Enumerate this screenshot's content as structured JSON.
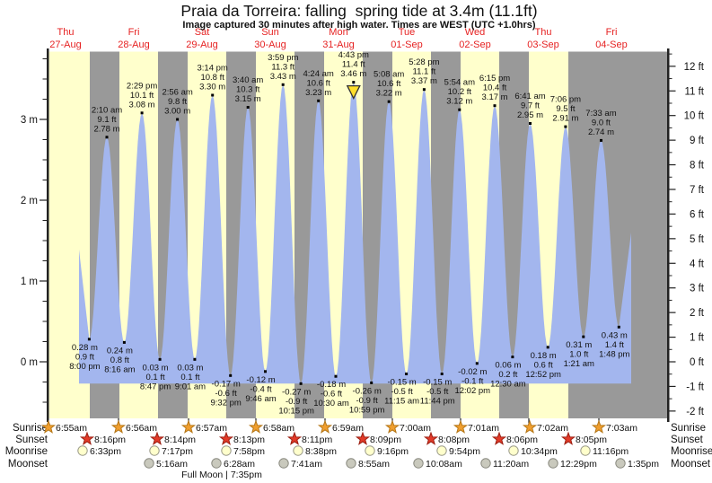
{
  "title": "Praia da Torreira: falling  spring tide at 3.4m (11.1ft)",
  "subtitle": "Image captured 30 minutes after high water. Times are WEST (UTC +1.0hrs)",
  "days": [
    {
      "name": "Thu",
      "date": "27-Aug"
    },
    {
      "name": "Fri",
      "date": "28-Aug"
    },
    {
      "name": "Sat",
      "date": "29-Aug"
    },
    {
      "name": "Sun",
      "date": "30-Aug"
    },
    {
      "name": "Mon",
      "date": "31-Aug"
    },
    {
      "name": "Tue",
      "date": "01-Sep"
    },
    {
      "name": "Wed",
      "date": "02-Sep"
    },
    {
      "name": "Thu",
      "date": "03-Sep"
    },
    {
      "name": "Fri",
      "date": "04-Sep"
    }
  ],
  "chart_data": {
    "type": "area",
    "title": "Praia da Torreira tide curve",
    "time_origin": "hours since 27-Aug 00:00 WEST",
    "baseline_m": -0.27,
    "curve_start": {
      "t": 16.4,
      "h": 1.39
    },
    "curve_end": {
      "t": 210.1,
      "h": 1.6
    },
    "tides": [
      {
        "type": "low",
        "t": 20.0,
        "h": 0.28,
        "m": "0.28 m",
        "ft": "0.9 ft",
        "time": "8:00 pm"
      },
      {
        "type": "high",
        "t": 26.17,
        "h": 2.78,
        "m": "2.78 m",
        "ft": "9.1 ft",
        "time": "2:10 am"
      },
      {
        "type": "low",
        "t": 32.27,
        "h": 0.24,
        "m": "0.24 m",
        "ft": "0.8 ft",
        "time": "8:16 am"
      },
      {
        "type": "high",
        "t": 38.48,
        "h": 3.08,
        "m": "3.08 m",
        "ft": "10.1 ft",
        "time": "2:29 pm"
      },
      {
        "type": "low",
        "t": 44.78,
        "h": 0.03,
        "m": "0.03 m",
        "ft": "0.1 ft",
        "time": "8:47 pm"
      },
      {
        "type": "high",
        "t": 50.93,
        "h": 3.0,
        "m": "3.00 m",
        "ft": "9.8 ft",
        "time": "2:56 am"
      },
      {
        "type": "low",
        "t": 57.02,
        "h": 0.03,
        "m": "0.03 m",
        "ft": "0.1 ft",
        "time": "9:01 am"
      },
      {
        "type": "high",
        "t": 63.23,
        "h": 3.3,
        "m": "3.30 m",
        "ft": "10.8 ft",
        "time": "3:14 pm"
      },
      {
        "type": "low",
        "t": 69.53,
        "h": -0.17,
        "m": "-0.17 m",
        "ft": "-0.6 ft",
        "time": "9:32 pm"
      },
      {
        "type": "high",
        "t": 75.67,
        "h": 3.15,
        "m": "3.15 m",
        "ft": "10.3 ft",
        "time": "3:40 am"
      },
      {
        "type": "low",
        "t": 81.77,
        "h": -0.12,
        "m": "-0.12 m",
        "ft": "-0.4 ft",
        "time": "9:46 am"
      },
      {
        "type": "high",
        "t": 87.98,
        "h": 3.43,
        "m": "3.43 m",
        "ft": "11.3 ft",
        "time": "3:59 pm"
      },
      {
        "type": "low",
        "t": 94.25,
        "h": -0.27,
        "m": "-0.27 m",
        "ft": "-0.9 ft",
        "time": "10:15 pm"
      },
      {
        "type": "high",
        "t": 100.4,
        "h": 3.23,
        "m": "3.23 m",
        "ft": "10.6 ft",
        "time": "4:24 am"
      },
      {
        "type": "low",
        "t": 106.5,
        "h": -0.18,
        "m": "-0.18 m",
        "ft": "-0.6 ft",
        "time": "10:30 am"
      },
      {
        "type": "high",
        "t": 112.72,
        "h": 3.46,
        "m": "3.46 m",
        "ft": "11.4 ft",
        "time": "4:43 pm",
        "current": true
      },
      {
        "type": "low",
        "t": 118.98,
        "h": -0.26,
        "m": "-0.26 m",
        "ft": "-0.9 ft",
        "time": "10:59 pm"
      },
      {
        "type": "high",
        "t": 125.13,
        "h": 3.22,
        "m": "3.22 m",
        "ft": "10.6 ft",
        "time": "5:08 am"
      },
      {
        "type": "low",
        "t": 131.25,
        "h": -0.15,
        "m": "-0.15 m",
        "ft": "-0.5 ft",
        "time": "11:15 am"
      },
      {
        "type": "high",
        "t": 137.47,
        "h": 3.37,
        "m": "3.37 m",
        "ft": "11.1 ft",
        "time": "5:28 pm"
      },
      {
        "type": "low",
        "t": 143.73,
        "h": -0.15,
        "m": "-0.15 m",
        "ft": "-0.5 ft",
        "time": "11:44 pm"
      },
      {
        "type": "high",
        "t": 149.9,
        "h": 3.12,
        "m": "3.12 m",
        "ft": "10.2 ft",
        "time": "5:54 am"
      },
      {
        "type": "low",
        "t": 156.03,
        "h": -0.02,
        "m": "-0.02 m",
        "ft": "-0.1 ft",
        "time": "12:02 pm"
      },
      {
        "type": "high",
        "t": 162.25,
        "h": 3.17,
        "m": "3.17 m",
        "ft": "10.4 ft",
        "time": "6:15 pm"
      },
      {
        "type": "low",
        "t": 168.5,
        "h": 0.06,
        "m": "0.06 m",
        "ft": "0.2 ft",
        "time": "12:30 am"
      },
      {
        "type": "high",
        "t": 174.68,
        "h": 2.95,
        "m": "2.95 m",
        "ft": "9.7 ft",
        "time": "6:41 am"
      },
      {
        "type": "low",
        "t": 180.87,
        "h": 0.18,
        "m": "0.18 m",
        "ft": "0.6 ft",
        "time": "12:52 pm"
      },
      {
        "type": "high",
        "t": 187.1,
        "h": 2.91,
        "m": "2.91 m",
        "ft": "9.5 ft",
        "time": "7:06 pm"
      },
      {
        "type": "low",
        "t": 193.35,
        "h": 0.31,
        "m": "0.31 m",
        "ft": "1.0 ft",
        "time": "1:21 am"
      },
      {
        "type": "high",
        "t": 199.55,
        "h": 2.74,
        "m": "2.74 m",
        "ft": "9.0 ft",
        "time": "7:33 am"
      },
      {
        "type": "low",
        "t": 205.8,
        "h": 0.43,
        "m": "0.43 m",
        "ft": "1.4 ft",
        "time": "1:48 pm"
      }
    ],
    "current_marker": {
      "time": "4:43 pm",
      "tide_m": 3.46,
      "symbol": "triangle-down"
    },
    "left_axis": {
      "unit": "m",
      "minor_step": 0.25,
      "labels": [
        {
          "v": 0,
          "text": "0 m"
        },
        {
          "v": 1,
          "text": "1 m"
        },
        {
          "v": 2,
          "text": "2 m"
        },
        {
          "v": 3,
          "text": "3 m"
        }
      ]
    },
    "right_axis": {
      "unit": "ft",
      "minor_step": 0.5,
      "labels": [
        {
          "v": 12,
          "text": "12 ft"
        },
        {
          "v": 11,
          "text": "11 ft"
        },
        {
          "v": 10,
          "text": "10 ft"
        },
        {
          "v": 9,
          "text": "9 ft"
        },
        {
          "v": 8,
          "text": "8 ft"
        },
        {
          "v": 7,
          "text": "7 ft"
        },
        {
          "v": 6,
          "text": "6 ft"
        },
        {
          "v": 5,
          "text": "5 ft"
        },
        {
          "v": 4,
          "text": "4 ft"
        },
        {
          "v": 3,
          "text": "3 ft"
        },
        {
          "v": 2,
          "text": "2 ft"
        },
        {
          "v": 1,
          "text": "1 ft"
        },
        {
          "v": 0,
          "text": "0 ft"
        },
        {
          "v": -1,
          "text": "-1 ft"
        },
        {
          "v": -2,
          "text": "-2 ft"
        }
      ]
    }
  },
  "astro": {
    "rows": [
      {
        "label": "Sunrise",
        "icon": "sunrise-star",
        "times": [
          "6:55am",
          "6:56am",
          "6:57am",
          "6:58am",
          "6:59am",
          "7:00am",
          "7:01am",
          "7:02am",
          "7:03am"
        ]
      },
      {
        "label": "Sunset",
        "icon": "sunset-star",
        "times": [
          "8:16pm",
          "8:14pm",
          "8:13pm",
          "8:11pm",
          "8:09pm",
          "8:08pm",
          "8:06pm",
          "8:05pm"
        ]
      },
      {
        "label": "Moonrise",
        "icon": "moonrise-circle",
        "times": [
          "6:33pm",
          "7:17pm",
          "7:58pm",
          "8:38pm",
          "9:16pm",
          "9:54pm",
          "10:34pm",
          "11:16pm"
        ]
      },
      {
        "label": "Moonset",
        "icon": "moonset-circle",
        "times": [
          "5:16am",
          "6:28am",
          "7:41am",
          "8:55am",
          "10:08am",
          "11:20am",
          "12:29pm",
          "1:35pm"
        ]
      }
    ],
    "full_moon": "Full Moon | 7:35pm"
  },
  "colors": {
    "day_band": "#ffffcc",
    "night_band": "#999999",
    "water": "#a3b6ee",
    "day_label": "#e62222",
    "axis_line": "#222222",
    "sunrise_star": "#f09e2e",
    "sunrise_star_stroke": "#b57718",
    "sunset_star": "#e23a28",
    "sunset_star_stroke": "#9c1f12",
    "moonrise_circle": "#ffffcc",
    "moonrise_circle_stroke": "#9a9a8a",
    "moonset_circle": "#c9c9bd",
    "moonset_circle_stroke": "#8a8a80",
    "marker_triangle": "#ffdf2b",
    "marker_triangle_stroke": "#333333"
  }
}
